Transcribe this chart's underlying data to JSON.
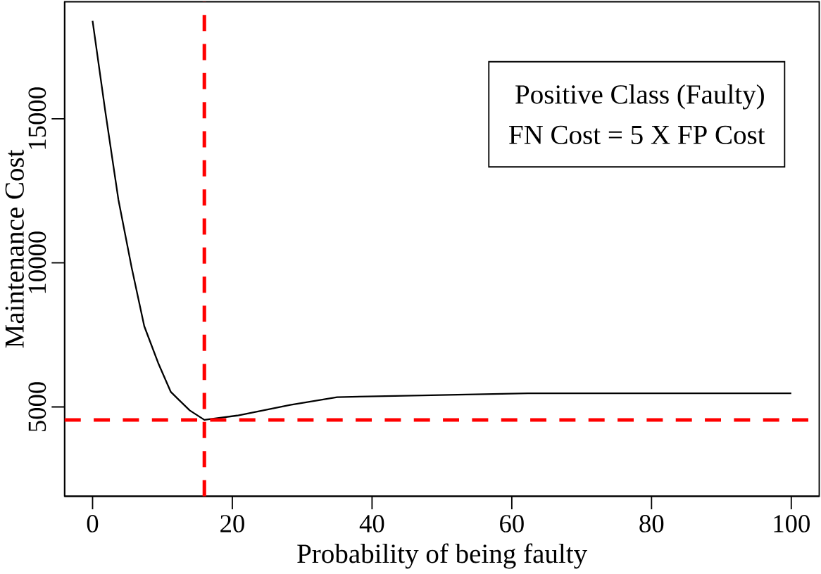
{
  "chart_data": {
    "type": "line",
    "xlabel": "Probability of being faulty",
    "ylabel": "Maintenance Cost",
    "annotations": [
      "Positive Class (Faulty)",
      "FN Cost = 5 X FP Cost"
    ],
    "x": [
      0,
      1.8,
      3.7,
      5.6,
      7.4,
      9.4,
      11.2,
      13.9,
      16,
      20.7,
      28.3,
      35,
      47.2,
      62.3,
      100
    ],
    "series": [
      {
        "color": "#000000",
        "values": [
          18400,
          15290,
          12190,
          9830,
          7800,
          6520,
          5520,
          4880,
          4550,
          4700,
          5070,
          5340,
          5400,
          5470,
          5470
        ]
      }
    ],
    "xlim": [
      -4,
      104
    ],
    "ylim": [
      1900,
      19060
    ],
    "xticks": [
      0,
      20,
      40,
      60,
      80,
      100
    ],
    "yticks": [
      5000,
      10000,
      15000
    ],
    "ref_lines": [
      {
        "axis": "x",
        "value": 16,
        "color": "#ff0000",
        "line_style": "dashed"
      },
      {
        "axis": "y",
        "value": 4550,
        "color": "#ff0000",
        "line_style": "dashed"
      }
    ],
    "grid": false,
    "marker": "none",
    "line_style": "solid"
  }
}
